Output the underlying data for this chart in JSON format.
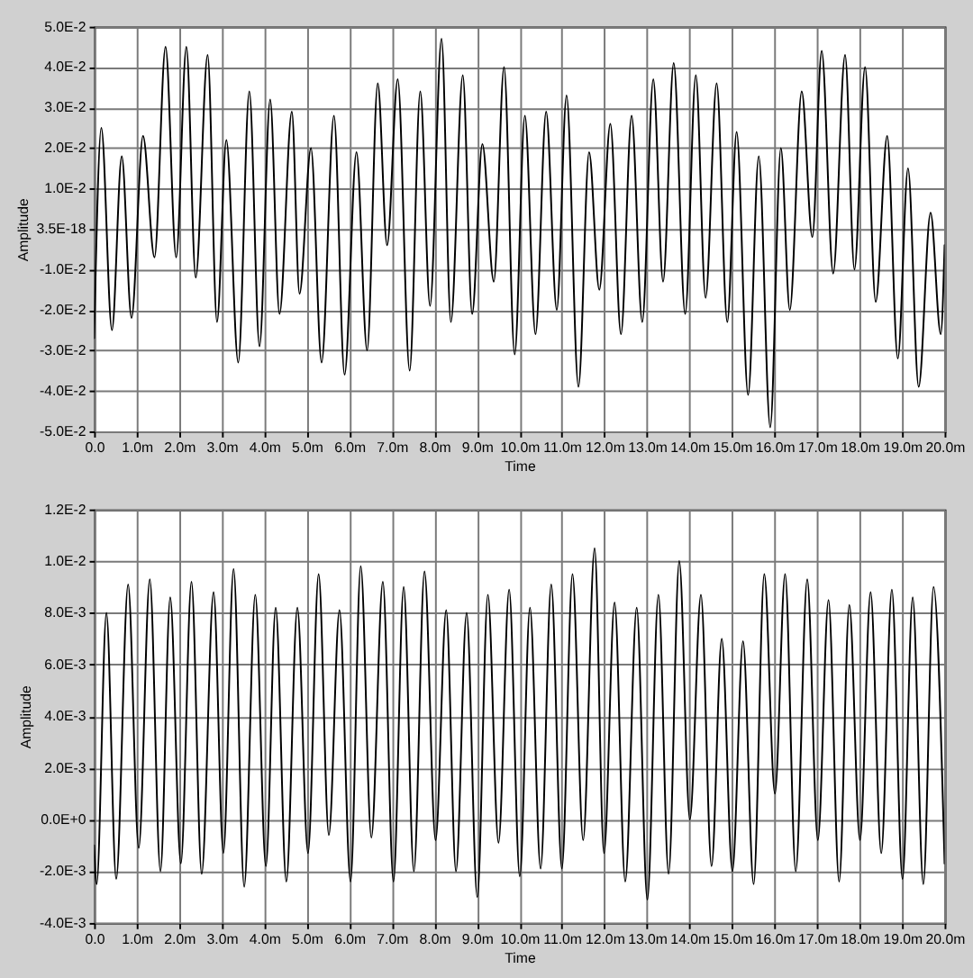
{
  "chart_data": [
    {
      "type": "line",
      "xlabel": "Time",
      "ylabel": "Amplitude",
      "grid": true,
      "line_style": "solid",
      "xlim": [
        0,
        20
      ],
      "ylim": [
        -0.05,
        0.05
      ],
      "xticks": [
        {
          "value": 0,
          "label": "0.0"
        },
        {
          "value": 1,
          "label": "1.0m"
        },
        {
          "value": 2,
          "label": "2.0m"
        },
        {
          "value": 3,
          "label": "3.0m"
        },
        {
          "value": 4,
          "label": "4.0m"
        },
        {
          "value": 5,
          "label": "5.0m"
        },
        {
          "value": 6,
          "label": "6.0m"
        },
        {
          "value": 7,
          "label": "7.0m"
        },
        {
          "value": 8,
          "label": "8.0m"
        },
        {
          "value": 9,
          "label": "9.0m"
        },
        {
          "value": 10,
          "label": "10.0m"
        },
        {
          "value": 11,
          "label": "11.0m"
        },
        {
          "value": 12,
          "label": "12.0m"
        },
        {
          "value": 13,
          "label": "13.0m"
        },
        {
          "value": 14,
          "label": "14.0m"
        },
        {
          "value": 15,
          "label": "15.0m"
        },
        {
          "value": 16,
          "label": "16.0m"
        },
        {
          "value": 17,
          "label": "17.0m"
        },
        {
          "value": 18,
          "label": "18.0m"
        },
        {
          "value": 19,
          "label": "19.0m"
        },
        {
          "value": 20,
          "label": "20.0m"
        }
      ],
      "yticks": [
        {
          "value": -0.05,
          "label": "-5.0E-2"
        },
        {
          "value": -0.04,
          "label": "-4.0E-2"
        },
        {
          "value": -0.03,
          "label": "-3.0E-2"
        },
        {
          "value": -0.02,
          "label": "-2.0E-2"
        },
        {
          "value": -0.01,
          "label": "-1.0E-2"
        },
        {
          "value": 3.5e-18,
          "label": "3.5E-18"
        },
        {
          "value": 0.01,
          "label": "1.0E-2"
        },
        {
          "value": 0.02,
          "label": "2.0E-2"
        },
        {
          "value": 0.03,
          "label": "3.0E-2"
        },
        {
          "value": 0.04,
          "label": "4.0E-2"
        },
        {
          "value": 0.05,
          "label": "5.0E-2"
        }
      ],
      "x": [
        0,
        0.17,
        0.42,
        0.65,
        0.88,
        1.15,
        1.42,
        1.68,
        1.93,
        2.17,
        2.39,
        2.67,
        2.89,
        3.11,
        3.39,
        3.65,
        3.89,
        4.14,
        4.36,
        4.65,
        4.83,
        5.1,
        5.35,
        5.64,
        5.89,
        6.17,
        6.42,
        6.67,
        6.89,
        7.14,
        7.42,
        7.67,
        7.9,
        8.17,
        8.39,
        8.67,
        8.89,
        9.13,
        9.4,
        9.64,
        9.89,
        10.13,
        10.38,
        10.63,
        10.88,
        11.11,
        11.39,
        11.64,
        11.88,
        12.14,
        12.39,
        12.64,
        12.89,
        13.15,
        13.38,
        13.63,
        13.9,
        14.15,
        14.38,
        14.64,
        14.89,
        15.11,
        15.38,
        15.63,
        15.9,
        16.15,
        16.36,
        16.64,
        16.89,
        17.11,
        17.38,
        17.66,
        17.88,
        18.13,
        18.38,
        18.65,
        18.9,
        19.14,
        19.39,
        19.67,
        19.91,
        20
      ],
      "series": [
        {
          "color": "#000000",
          "values": [
            -0.027,
            0.025,
            -0.025,
            0.018,
            -0.022,
            0.023,
            -0.007,
            0.045,
            -0.007,
            0.045,
            -0.012,
            0.043,
            -0.023,
            0.022,
            -0.033,
            0.034,
            -0.029,
            0.032,
            -0.021,
            0.029,
            -0.016,
            0.02,
            -0.033,
            0.028,
            -0.036,
            0.019,
            -0.03,
            0.036,
            -0.004,
            0.037,
            -0.035,
            0.034,
            -0.019,
            0.047,
            -0.023,
            0.038,
            -0.021,
            0.021,
            -0.013,
            0.04,
            -0.031,
            0.028,
            -0.026,
            0.029,
            -0.02,
            0.033,
            -0.039,
            0.019,
            -0.015,
            0.026,
            -0.026,
            0.028,
            -0.023,
            0.037,
            -0.013,
            0.041,
            -0.021,
            0.038,
            -0.017,
            0.036,
            -0.023,
            0.024,
            -0.041,
            0.018,
            -0.049,
            0.02,
            -0.02,
            0.034,
            -0.002,
            0.044,
            -0.011,
            0.043,
            -0.01,
            0.04,
            -0.018,
            0.023,
            -0.032,
            0.015,
            -0.039,
            0.004,
            -0.026,
            -0.004
          ]
        }
      ]
    },
    {
      "type": "line",
      "xlabel": "Time",
      "ylabel": "Amplitude",
      "grid": true,
      "line_style": "solid",
      "xlim": [
        0,
        20
      ],
      "ylim": [
        -0.004,
        0.012
      ],
      "xticks": [
        {
          "value": 0,
          "label": "0.0"
        },
        {
          "value": 1,
          "label": "1.0m"
        },
        {
          "value": 2,
          "label": "2.0m"
        },
        {
          "value": 3,
          "label": "3.0m"
        },
        {
          "value": 4,
          "label": "4.0m"
        },
        {
          "value": 5,
          "label": "5.0m"
        },
        {
          "value": 6,
          "label": "6.0m"
        },
        {
          "value": 7,
          "label": "7.0m"
        },
        {
          "value": 8,
          "label": "8.0m"
        },
        {
          "value": 9,
          "label": "9.0m"
        },
        {
          "value": 10,
          "label": "10.0m"
        },
        {
          "value": 11,
          "label": "11.0m"
        },
        {
          "value": 12,
          "label": "12.0m"
        },
        {
          "value": 13,
          "label": "13.0m"
        },
        {
          "value": 14,
          "label": "14.0m"
        },
        {
          "value": 15,
          "label": "15.0m"
        },
        {
          "value": 16,
          "label": "16.0m"
        },
        {
          "value": 17,
          "label": "17.0m"
        },
        {
          "value": 18,
          "label": "18.0m"
        },
        {
          "value": 19,
          "label": "19.0m"
        },
        {
          "value": 20,
          "label": "20.0m"
        }
      ],
      "yticks": [
        {
          "value": -0.004,
          "label": "-4.0E-3"
        },
        {
          "value": -0.002,
          "label": "-2.0E-3"
        },
        {
          "value": 0,
          "label": "0.0E+0"
        },
        {
          "value": 0.002,
          "label": "2.0E-3"
        },
        {
          "value": 0.004,
          "label": "4.0E-3"
        },
        {
          "value": 0.006,
          "label": "6.0E-3"
        },
        {
          "value": 0.008,
          "label": "8.0E-3"
        },
        {
          "value": 0.01,
          "label": "1.0E-2"
        },
        {
          "value": 0.012,
          "label": "1.2E-2"
        }
      ],
      "x": [
        0,
        0.06,
        0.29,
        0.52,
        0.8,
        1.05,
        1.31,
        1.56,
        1.79,
        2.04,
        2.29,
        2.53,
        2.81,
        3.04,
        3.28,
        3.53,
        3.79,
        4.04,
        4.27,
        4.52,
        4.78,
        5.03,
        5.28,
        5.52,
        5.77,
        6.03,
        6.27,
        6.52,
        6.79,
        7.04,
        7.28,
        7.52,
        7.77,
        8.03,
        8.28,
        8.51,
        8.76,
        9.01,
        9.26,
        9.51,
        9.76,
        10.01,
        10.25,
        10.5,
        10.75,
        11,
        11.25,
        11.5,
        11.77,
        11.99,
        12.24,
        12.49,
        12.76,
        13.01,
        13.27,
        13.51,
        13.76,
        14.01,
        14.27,
        14.52,
        14.76,
        15.01,
        15.26,
        15.51,
        15.76,
        16.01,
        16.25,
        16.5,
        16.77,
        17.02,
        17.27,
        17.52,
        17.76,
        18.01,
        18.26,
        18.51,
        18.76,
        19.01,
        19.25,
        19.5,
        19.74,
        20
      ],
      "series": [
        {
          "color": "#000000",
          "values": [
            -0.001,
            -0.0025,
            0.008,
            -0.0023,
            0.0091,
            -0.0011,
            0.0093,
            -0.002,
            0.0086,
            -0.0017,
            0.0092,
            -0.0021,
            0.0088,
            -0.0013,
            0.0097,
            -0.0026,
            0.0087,
            -0.0018,
            0.0082,
            -0.0024,
            0.0082,
            -0.0013,
            0.0095,
            -0.0006,
            0.0081,
            -0.0024,
            0.0098,
            -0.0007,
            0.0092,
            -0.0024,
            0.009,
            -0.002,
            0.0096,
            -0.0008,
            0.0081,
            -0.002,
            0.008,
            -0.003,
            0.0087,
            -0.0009,
            0.0089,
            -0.0022,
            0.0082,
            -0.0019,
            0.0091,
            -0.0019,
            0.0095,
            -0.0008,
            0.0105,
            -0.0013,
            0.0084,
            -0.0024,
            0.0082,
            -0.0031,
            0.0087,
            -0.0021,
            0.01,
            0.0,
            0.0087,
            -0.0018,
            0.007,
            -0.002,
            0.0069,
            -0.0025,
            0.0095,
            0.001,
            0.0095,
            -0.002,
            0.0093,
            -0.0008,
            0.0085,
            -0.0024,
            0.0083,
            -0.0008,
            0.0088,
            -0.0013,
            0.0089,
            -0.0023,
            0.0086,
            -0.0025,
            0.009,
            -0.0017
          ]
        }
      ]
    }
  ]
}
